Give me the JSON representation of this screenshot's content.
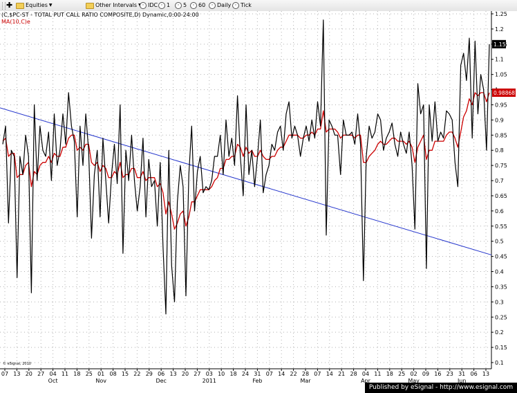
{
  "toolbar": {
    "equities": "Equities",
    "other_intervals": "Other Intervals",
    "idc": "IDC",
    "i1": "1",
    "i5": "5",
    "i60": "60",
    "daily": "Daily",
    "tick": "Tick"
  },
  "legend": {
    "title": "(C,$PC-ST - TOTAL PUT CALL RATIO COMPOSITE,D) Dynamic,0:00-24:00",
    "ma": "MA(10,C)e"
  },
  "copyright": "© eSignal, 2010",
  "footer": "Published by eSignal - http://www.esignal.com",
  "colors": {
    "price": "#000000",
    "ma": "#cc0000",
    "trend": "#2233cc",
    "grid": "#b0b0b0"
  },
  "chart_data": {
    "type": "line",
    "title": "(C,$PC-ST - TOTAL PUT CALL RATIO COMPOSITE,D) Dynamic,0:00-24:00",
    "ylim": [
      0.1,
      1.25
    ],
    "y_ticks": [
      "1.25",
      "1.2",
      "1.15",
      "1.1",
      "1.05",
      "1",
      "0.95",
      "0.9",
      "0.85",
      "0.8",
      "0.75",
      "0.7",
      "0.65",
      "0.6",
      "0.55",
      "0.5",
      "0.45",
      "0.4",
      "0.35",
      "0.3",
      "0.25",
      "0.2",
      "0.15",
      "0.1"
    ],
    "date_ticks": [
      "07",
      "13",
      "20",
      "27",
      "04",
      "11",
      "18",
      "25",
      "01",
      "08",
      "15",
      "22",
      "29",
      "06",
      "13",
      "20",
      "27",
      "03",
      "10",
      "18",
      "24",
      "31",
      "07",
      "14",
      "22",
      "28",
      "07",
      "14",
      "21",
      "28",
      "04",
      "11",
      "18",
      "25",
      "02",
      "09",
      "16",
      "23",
      "31",
      "06",
      "13"
    ],
    "month_labels": [
      {
        "label": "Oct",
        "at": "04"
      },
      {
        "label": "Nov",
        "at": "01"
      },
      {
        "label": "Dec",
        "at": "06"
      },
      {
        "label": "2011",
        "at": "03"
      },
      {
        "label": "Feb",
        "at": "31"
      },
      {
        "label": "Mar",
        "at": "28"
      },
      {
        "label": "Apr",
        "at": "04"
      },
      {
        "label": "May",
        "at": "02"
      },
      {
        "label": "Jun",
        "at": "31"
      }
    ],
    "last_value_label": "1.15",
    "ma_last_label": "0.988681",
    "series": [
      {
        "name": "$PC-ST",
        "values": [
          0.82,
          0.88,
          0.56,
          0.8,
          0.78,
          0.38,
          0.78,
          0.72,
          0.85,
          0.78,
          0.33,
          0.95,
          0.7,
          0.88,
          0.8,
          0.78,
          0.86,
          0.7,
          0.92,
          0.75,
          0.8,
          0.92,
          0.82,
          0.99,
          0.88,
          0.83,
          0.58,
          0.88,
          0.75,
          0.92,
          0.8,
          0.51,
          0.72,
          0.8,
          0.58,
          0.84,
          0.7,
          0.56,
          0.72,
          0.82,
          0.69,
          0.95,
          0.46,
          0.8,
          0.7,
          0.85,
          0.7,
          0.6,
          0.68,
          0.84,
          0.58,
          0.77,
          0.68,
          0.7,
          0.55,
          0.76,
          0.48,
          0.26,
          0.8,
          0.42,
          0.3,
          0.63,
          0.75,
          0.68,
          0.32,
          0.72,
          0.88,
          0.6,
          0.73,
          0.78,
          0.66,
          0.68,
          0.67,
          0.7,
          0.78,
          0.78,
          0.85,
          0.72,
          0.9,
          0.78,
          0.84,
          0.75,
          0.98,
          0.78,
          0.65,
          0.95,
          0.72,
          0.8,
          0.68,
          0.78,
          0.9,
          0.66,
          0.72,
          0.75,
          0.82,
          0.8,
          0.86,
          0.88,
          0.8,
          0.92,
          0.96,
          0.84,
          0.88,
          0.85,
          0.78,
          0.84,
          0.88,
          0.83,
          0.9,
          0.84,
          0.96,
          0.88,
          1.23,
          0.52,
          0.9,
          0.88,
          0.85,
          0.85,
          0.72,
          0.9,
          0.85,
          0.85,
          0.86,
          0.82,
          0.92,
          0.82,
          0.37,
          0.78,
          0.88,
          0.84,
          0.86,
          0.92,
          0.9,
          0.8,
          0.84,
          0.86,
          0.89,
          0.82,
          0.78,
          0.86,
          0.82,
          0.79,
          0.86,
          0.75,
          0.54,
          1.02,
          0.92,
          0.95,
          0.41,
          0.95,
          0.83,
          0.96,
          0.83,
          0.86,
          0.84,
          0.93,
          0.92,
          0.9,
          0.76,
          0.68,
          1.08,
          1.12,
          1.03,
          1.17,
          0.84,
          1.16,
          0.92,
          1.05,
          1.0,
          0.8,
          1.15
        ]
      },
      {
        "name": "MA(10,C)e",
        "values": [
          0.83,
          0.84,
          0.78,
          0.79,
          0.79,
          0.71,
          0.72,
          0.72,
          0.75,
          0.76,
          0.68,
          0.73,
          0.72,
          0.75,
          0.76,
          0.76,
          0.78,
          0.76,
          0.79,
          0.78,
          0.78,
          0.81,
          0.81,
          0.84,
          0.85,
          0.85,
          0.8,
          0.81,
          0.8,
          0.82,
          0.82,
          0.76,
          0.75,
          0.76,
          0.73,
          0.75,
          0.74,
          0.71,
          0.71,
          0.73,
          0.72,
          0.76,
          0.71,
          0.72,
          0.72,
          0.74,
          0.74,
          0.71,
          0.71,
          0.73,
          0.7,
          0.71,
          0.71,
          0.71,
          0.68,
          0.69,
          0.66,
          0.59,
          0.63,
          0.59,
          0.54,
          0.56,
          0.59,
          0.6,
          0.55,
          0.58,
          0.63,
          0.63,
          0.65,
          0.67,
          0.67,
          0.67,
          0.67,
          0.68,
          0.7,
          0.71,
          0.74,
          0.74,
          0.77,
          0.77,
          0.78,
          0.78,
          0.82,
          0.81,
          0.78,
          0.81,
          0.79,
          0.8,
          0.78,
          0.78,
          0.8,
          0.78,
          0.77,
          0.77,
          0.78,
          0.78,
          0.8,
          0.81,
          0.81,
          0.83,
          0.85,
          0.85,
          0.85,
          0.85,
          0.84,
          0.84,
          0.85,
          0.85,
          0.86,
          0.85,
          0.87,
          0.87,
          0.93,
          0.86,
          0.87,
          0.87,
          0.87,
          0.86,
          0.84,
          0.85,
          0.85,
          0.85,
          0.85,
          0.84,
          0.85,
          0.85,
          0.76,
          0.76,
          0.78,
          0.79,
          0.8,
          0.82,
          0.83,
          0.82,
          0.82,
          0.83,
          0.84,
          0.84,
          0.83,
          0.83,
          0.83,
          0.82,
          0.83,
          0.81,
          0.76,
          0.81,
          0.83,
          0.85,
          0.77,
          0.8,
          0.8,
          0.83,
          0.83,
          0.83,
          0.83,
          0.85,
          0.86,
          0.86,
          0.84,
          0.81,
          0.86,
          0.91,
          0.93,
          0.97,
          0.95,
          0.99,
          0.98,
          0.99,
          0.99,
          0.96,
          0.99
        ]
      }
    ],
    "trendline": {
      "from": {
        "x": "start",
        "y": 0.94
      },
      "to": {
        "x": "end",
        "y": 0.455
      }
    },
    "grid": true
  }
}
